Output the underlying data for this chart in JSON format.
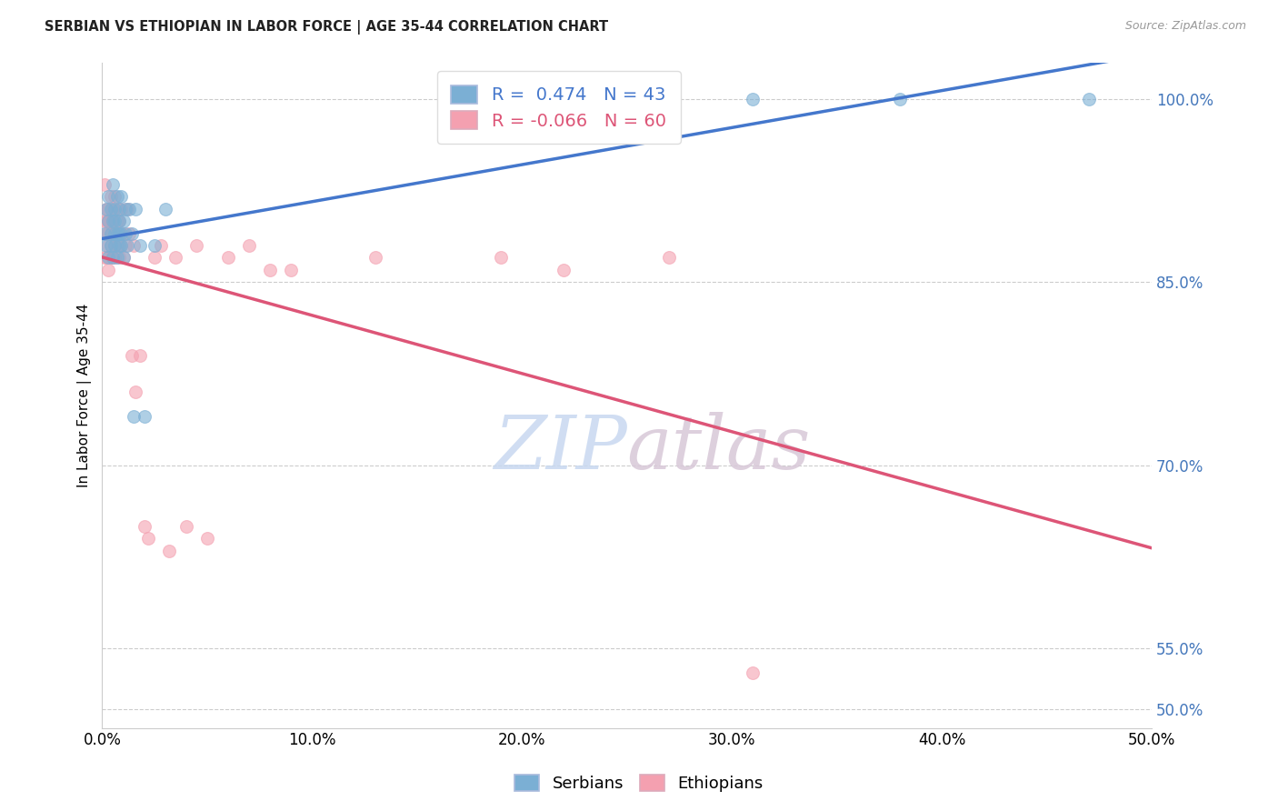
{
  "title": "SERBIAN VS ETHIOPIAN IN LABOR FORCE | AGE 35-44 CORRELATION CHART",
  "source": "Source: ZipAtlas.com",
  "ylabel": "In Labor Force | Age 35-44",
  "ylabel_right_ticks": [
    50.0,
    55.0,
    70.0,
    85.0,
    100.0
  ],
  "xlim": [
    0.0,
    0.5
  ],
  "ylim": [
    0.485,
    1.03
  ],
  "blue_R": 0.474,
  "blue_N": 43,
  "pink_R": -0.066,
  "pink_N": 60,
  "blue_color": "#7BAFD4",
  "pink_color": "#F4A0B0",
  "blue_trend_color": "#4477CC",
  "pink_trend_color": "#DD5577",
  "watermark_zip": "ZIP",
  "watermark_atlas": "atlas",
  "serbian_x": [
    0.001,
    0.002,
    0.002,
    0.003,
    0.003,
    0.003,
    0.004,
    0.004,
    0.004,
    0.005,
    0.005,
    0.005,
    0.006,
    0.006,
    0.006,
    0.006,
    0.007,
    0.007,
    0.007,
    0.008,
    0.008,
    0.008,
    0.008,
    0.009,
    0.009,
    0.009,
    0.01,
    0.01,
    0.011,
    0.011,
    0.012,
    0.013,
    0.014,
    0.015,
    0.016,
    0.018,
    0.02,
    0.025,
    0.03,
    0.17,
    0.31,
    0.38,
    0.47
  ],
  "serbian_y": [
    0.89,
    0.91,
    0.88,
    0.9,
    0.92,
    0.87,
    0.89,
    0.91,
    0.88,
    0.9,
    0.93,
    0.87,
    0.89,
    0.91,
    0.88,
    0.9,
    0.89,
    0.92,
    0.87,
    0.89,
    0.91,
    0.88,
    0.9,
    0.89,
    0.92,
    0.88,
    0.9,
    0.87,
    0.89,
    0.91,
    0.88,
    0.91,
    0.89,
    0.74,
    0.91,
    0.88,
    0.74,
    0.88,
    0.91,
    1.0,
    1.0,
    1.0,
    1.0
  ],
  "ethiopian_x": [
    0.001,
    0.001,
    0.001,
    0.002,
    0.002,
    0.002,
    0.002,
    0.003,
    0.003,
    0.003,
    0.003,
    0.003,
    0.004,
    0.004,
    0.004,
    0.004,
    0.004,
    0.005,
    0.005,
    0.005,
    0.005,
    0.006,
    0.006,
    0.006,
    0.006,
    0.007,
    0.007,
    0.007,
    0.008,
    0.008,
    0.008,
    0.009,
    0.009,
    0.01,
    0.01,
    0.011,
    0.012,
    0.013,
    0.014,
    0.015,
    0.016,
    0.018,
    0.02,
    0.022,
    0.025,
    0.028,
    0.032,
    0.035,
    0.04,
    0.045,
    0.05,
    0.06,
    0.07,
    0.08,
    0.09,
    0.13,
    0.19,
    0.22,
    0.27,
    0.31
  ],
  "ethiopian_y": [
    0.9,
    0.87,
    0.93,
    0.89,
    0.91,
    0.87,
    0.9,
    0.89,
    0.91,
    0.88,
    0.9,
    0.86,
    0.89,
    0.92,
    0.87,
    0.9,
    0.88,
    0.91,
    0.89,
    0.87,
    0.9,
    0.88,
    0.92,
    0.87,
    0.89,
    0.9,
    0.88,
    0.91,
    0.89,
    0.87,
    0.9,
    0.88,
    0.91,
    0.89,
    0.87,
    0.88,
    0.91,
    0.89,
    0.79,
    0.88,
    0.76,
    0.79,
    0.65,
    0.64,
    0.87,
    0.88,
    0.63,
    0.87,
    0.65,
    0.88,
    0.64,
    0.87,
    0.88,
    0.86,
    0.86,
    0.87,
    0.87,
    0.86,
    0.87,
    0.53
  ]
}
